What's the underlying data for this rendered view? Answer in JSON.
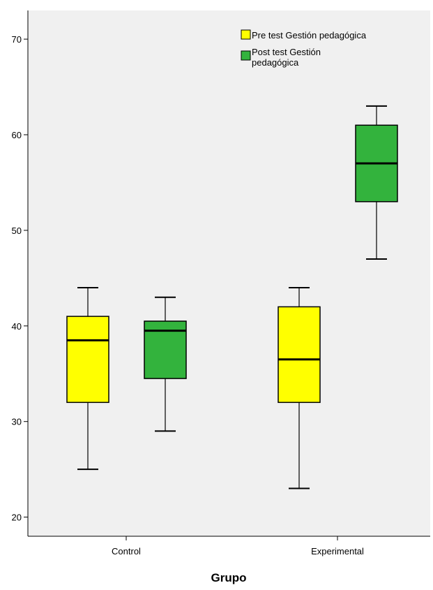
{
  "chart_data": {
    "type": "boxplot",
    "title": "",
    "xlabel": "Grupo",
    "ylabel": "",
    "ylim": [
      18,
      73
    ],
    "yticks": [
      20,
      30,
      40,
      50,
      60,
      70
    ],
    "grid": false,
    "legend_position": "top-right",
    "categories": [
      "Control",
      "Experimental"
    ],
    "series": [
      {
        "name": "Pre test Gestión pedagógica",
        "color": "#ffff00",
        "boxes": [
          {
            "category": "Control",
            "min": 25,
            "q1": 32,
            "median": 38.5,
            "q3": 41,
            "max": 44
          },
          {
            "category": "Experimental",
            "min": 23,
            "q1": 32,
            "median": 36.5,
            "q3": 42,
            "max": 44
          }
        ]
      },
      {
        "name": "Post test Gestión pedagógica",
        "color": "#33b33d",
        "boxes": [
          {
            "category": "Control",
            "min": 29,
            "q1": 34.5,
            "median": 39.5,
            "q3": 40.5,
            "max": 43
          },
          {
            "category": "Experimental",
            "min": 47,
            "q1": 53,
            "median": 57,
            "q3": 61,
            "max": 63
          }
        ]
      }
    ]
  },
  "colors": {
    "plot_background": "#f0f0f0",
    "outline": "#000000"
  }
}
